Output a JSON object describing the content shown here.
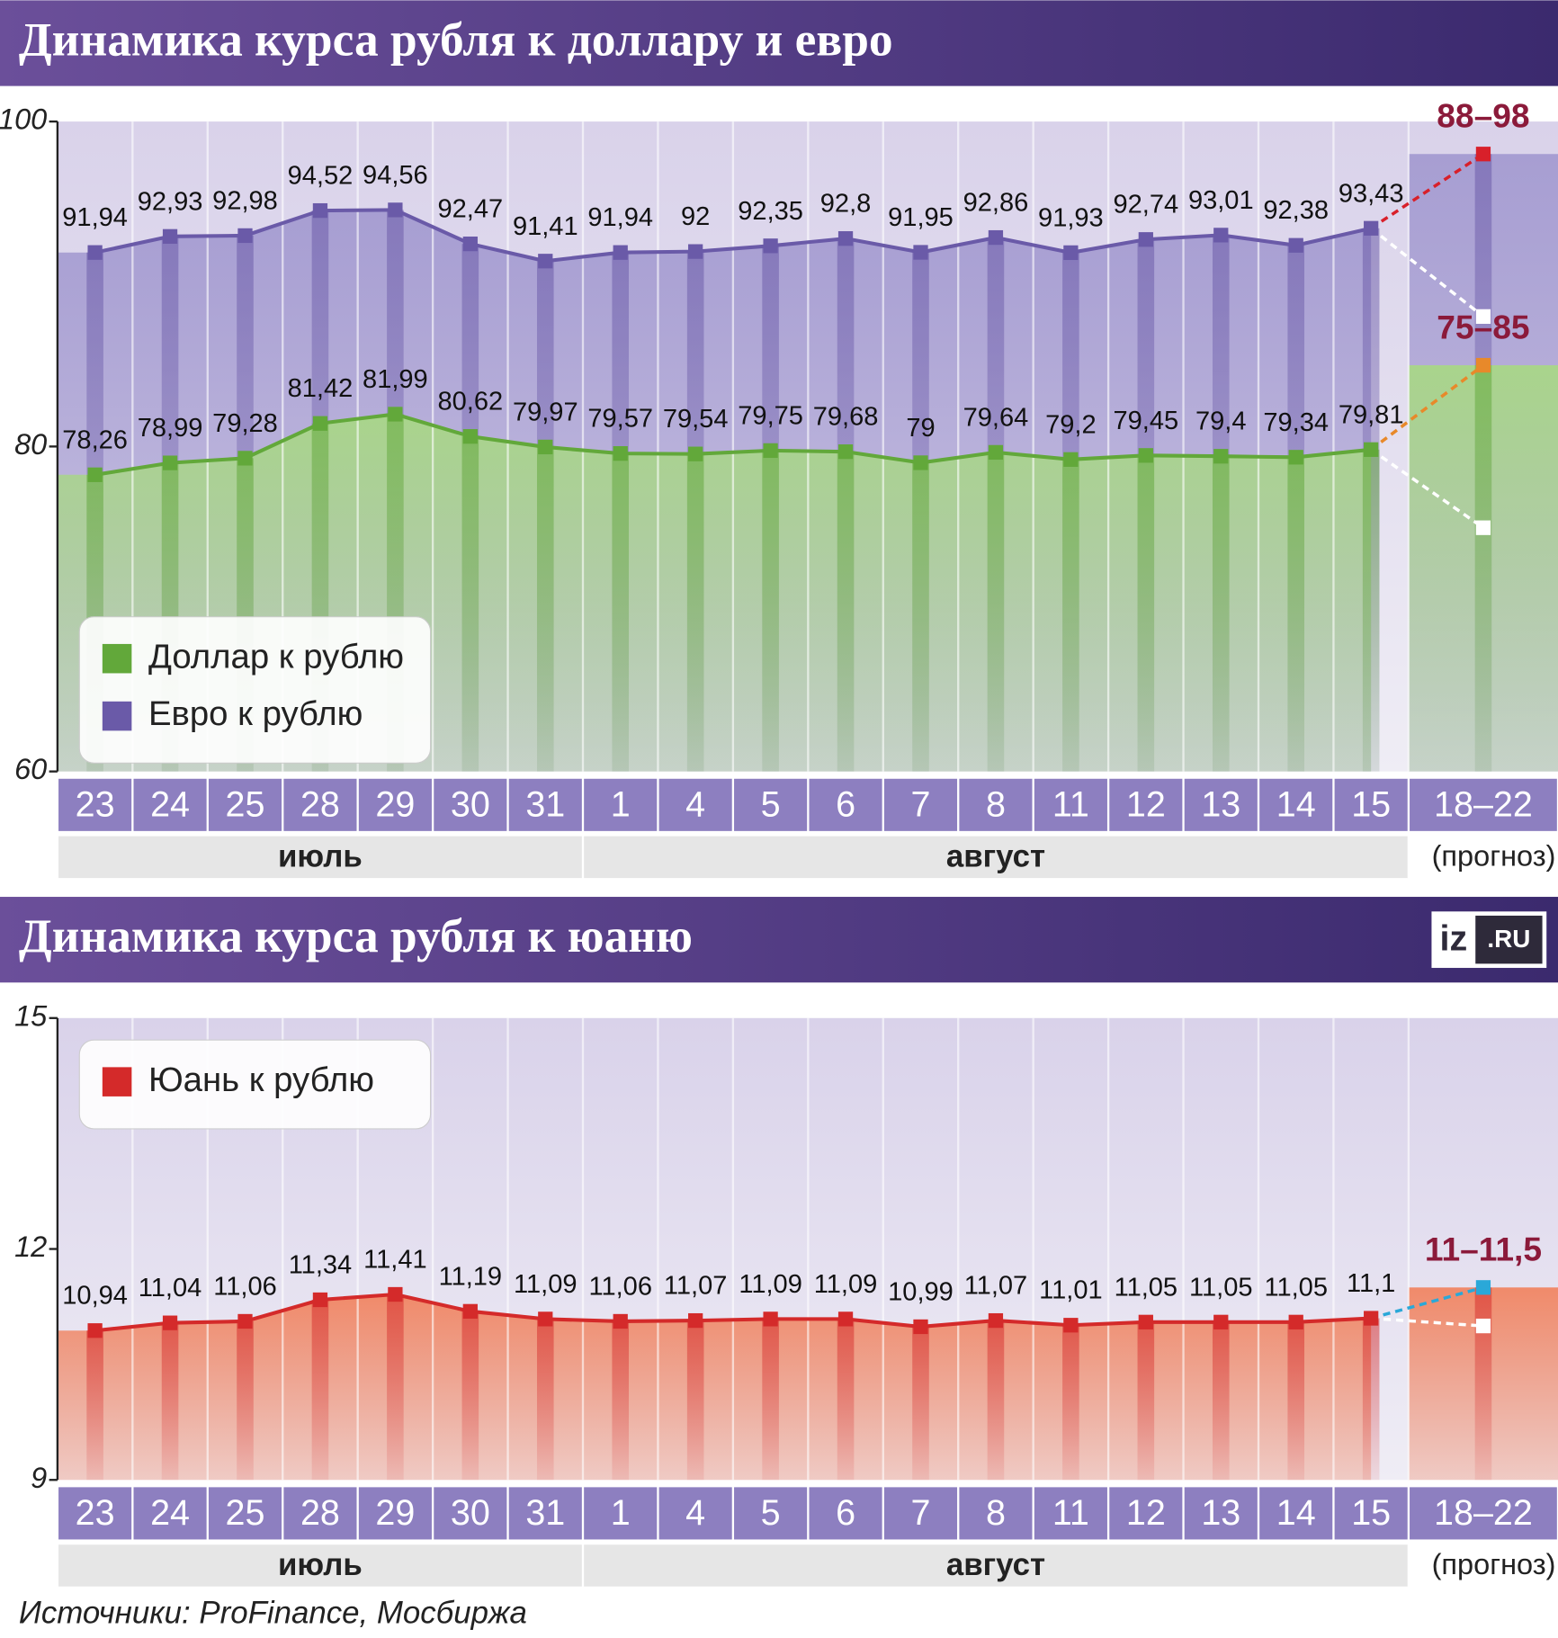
{
  "chart_data": [
    {
      "type": "line",
      "title": "Динамика курса рубля к доллару и евро",
      "categories": [
        "23",
        "24",
        "25",
        "28",
        "29",
        "30",
        "31",
        "1",
        "4",
        "5",
        "6",
        "7",
        "8",
        "11",
        "12",
        "13",
        "14",
        "15",
        "18–22"
      ],
      "months": [
        {
          "name": "июль",
          "span": 7
        },
        {
          "name": "август",
          "span": 11
        }
      ],
      "forecast_note": "(прогноз)",
      "ylim": [
        60,
        100
      ],
      "yticks": [
        60,
        80,
        100
      ],
      "legend": "left",
      "series": [
        {
          "name": "Евро к рублю",
          "color": "#6a5aa8",
          "area": "#a79ed2",
          "forecast_color": "#d8202a",
          "values": [
            91.94,
            92.93,
            92.98,
            94.52,
            94.56,
            92.47,
            91.41,
            91.94,
            92,
            92.35,
            92.8,
            91.95,
            92.86,
            91.93,
            92.74,
            93.01,
            92.38,
            93.43,
            null
          ],
          "value_labels": [
            "91,94",
            "92,93",
            "92,98",
            "94,52",
            "94,56",
            "92,47",
            "91,41",
            "91,94",
            "92",
            "92,35",
            "92,8",
            "91,95",
            "92,86",
            "91,93",
            "92,74",
            "93,01",
            "92,38",
            "93,43",
            null
          ],
          "forecast": {
            "low": 88,
            "high": 98,
            "label": "88–98"
          }
        },
        {
          "name": "Доллар к рублю",
          "color": "#62a83a",
          "area": "#a9d48c",
          "forecast_color": "#e8892a",
          "values": [
            78.26,
            78.99,
            79.28,
            81.42,
            81.99,
            80.62,
            79.97,
            79.57,
            79.54,
            79.75,
            79.68,
            79,
            79.64,
            79.2,
            79.45,
            79.4,
            79.34,
            79.81,
            null
          ],
          "value_labels": [
            "78,26",
            "78,99",
            "79,28",
            "81,42",
            "81,99",
            "80,62",
            "79,97",
            "79,57",
            "79,54",
            "79,75",
            "79,68",
            "79",
            "79,64",
            "79,2",
            "79,45",
            "79,4",
            "79,34",
            "79,81",
            null
          ],
          "forecast": {
            "low": 75,
            "high": 85,
            "label": "75–85"
          }
        }
      ]
    },
    {
      "type": "line",
      "title": "Динамика курса рубля к юаню",
      "categories": [
        "23",
        "24",
        "25",
        "28",
        "29",
        "30",
        "31",
        "1",
        "4",
        "5",
        "6",
        "7",
        "8",
        "11",
        "12",
        "13",
        "14",
        "15",
        "18–22"
      ],
      "months": [
        {
          "name": "июль",
          "span": 7
        },
        {
          "name": "август",
          "span": 11
        }
      ],
      "forecast_note": "(прогноз)",
      "ylim": [
        9,
        15
      ],
      "yticks": [
        9,
        12,
        15
      ],
      "legend": "left",
      "series": [
        {
          "name": "Юань к рублю",
          "color": "#d42a2a",
          "area": "#f08a6a",
          "forecast_color": "#2aa8d8",
          "values": [
            10.94,
            11.04,
            11.06,
            11.34,
            11.41,
            11.19,
            11.09,
            11.06,
            11.07,
            11.09,
            11.09,
            10.99,
            11.07,
            11.01,
            11.05,
            11.05,
            11.05,
            11.1,
            null
          ],
          "value_labels": [
            "10,94",
            "11,04",
            "11,06",
            "11,34",
            "11,41",
            "11,19",
            "11,09",
            "11,06",
            "11,07",
            "11,09",
            "11,09",
            "10,99",
            "11,07",
            "11,01",
            "11,05",
            "11,05",
            "11,05",
            "11,1",
            null
          ],
          "forecast": {
            "low": 11,
            "high": 11.5,
            "label": "11–11,5"
          }
        }
      ]
    }
  ],
  "logo": {
    "left": "iz",
    "right": ".RU"
  },
  "source": "Источники: ProFinance, Мосбиржа"
}
